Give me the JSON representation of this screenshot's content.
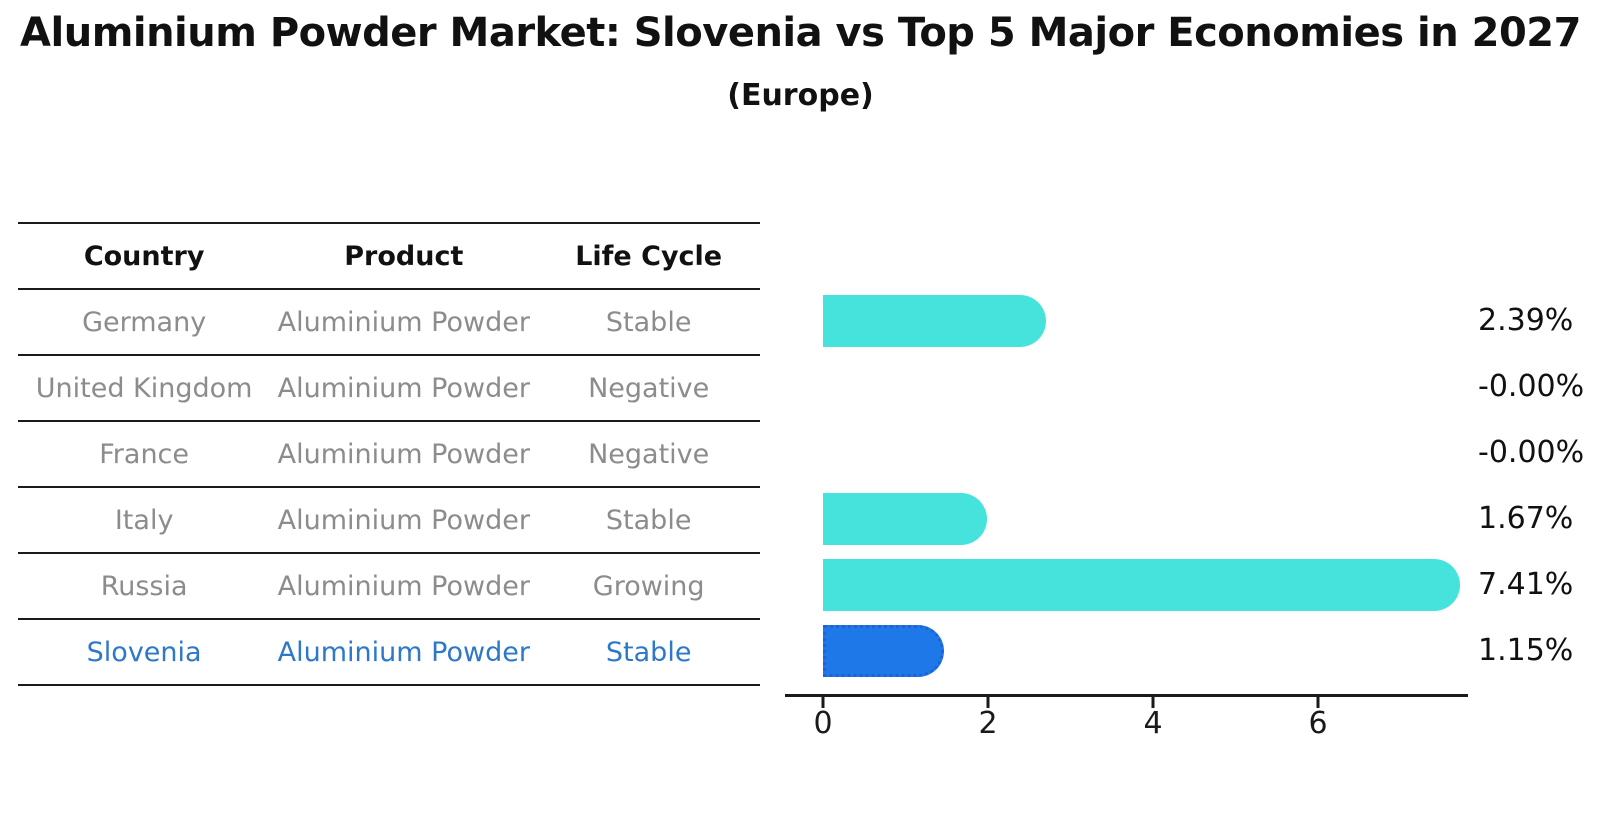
{
  "title": "Aluminium Powder Market: Slovenia vs Top 5 Major Economies in 2027",
  "subtitle": "(Europe)",
  "colors": {
    "bar": "#45E3DC",
    "highlight_bar": "#1E78E8",
    "highlight_border": "#1B63D6",
    "highlight_text": "#2D78C8",
    "table_text": "#8C8C8C",
    "header_text": "#111111",
    "line": "#1A1A1A"
  },
  "table": {
    "headers": [
      "Country",
      "Product",
      "Life Cycle"
    ],
    "rows": [
      {
        "country": "Germany",
        "product": "Aluminium Powder",
        "life_cycle": "Stable",
        "highlight": false
      },
      {
        "country": "United Kingdom",
        "product": "Aluminium Powder",
        "life_cycle": "Negative",
        "highlight": false
      },
      {
        "country": "France",
        "product": "Aluminium Powder",
        "life_cycle": "Negative",
        "highlight": false
      },
      {
        "country": "Italy",
        "product": "Aluminium Powder",
        "life_cycle": "Stable",
        "highlight": false
      },
      {
        "country": "Russia",
        "product": "Aluminium Powder",
        "life_cycle": "Growing",
        "highlight": false
      },
      {
        "country": "Slovenia",
        "product": "Aluminium Powder",
        "life_cycle": "Stable",
        "highlight": true
      }
    ]
  },
  "chart_data": {
    "type": "bar",
    "orientation": "horizontal",
    "title": "Aluminium Powder Market: Slovenia vs Top 5 Major Economies in 2027",
    "subtitle": "(Europe)",
    "categories": [
      "Germany",
      "United Kingdom",
      "France",
      "Italy",
      "Russia",
      "Slovenia"
    ],
    "values": [
      2.39,
      -0.0,
      -0.0,
      1.67,
      7.41,
      1.15
    ],
    "value_labels": [
      "2.39%",
      "-0.00%",
      "-0.00%",
      "1.67%",
      "7.41%",
      "1.15%"
    ],
    "highlight_index": 5,
    "xticks": [
      0,
      2,
      4,
      6
    ],
    "xlim": [
      0,
      7.8
    ],
    "grid": false,
    "legend": "none"
  }
}
